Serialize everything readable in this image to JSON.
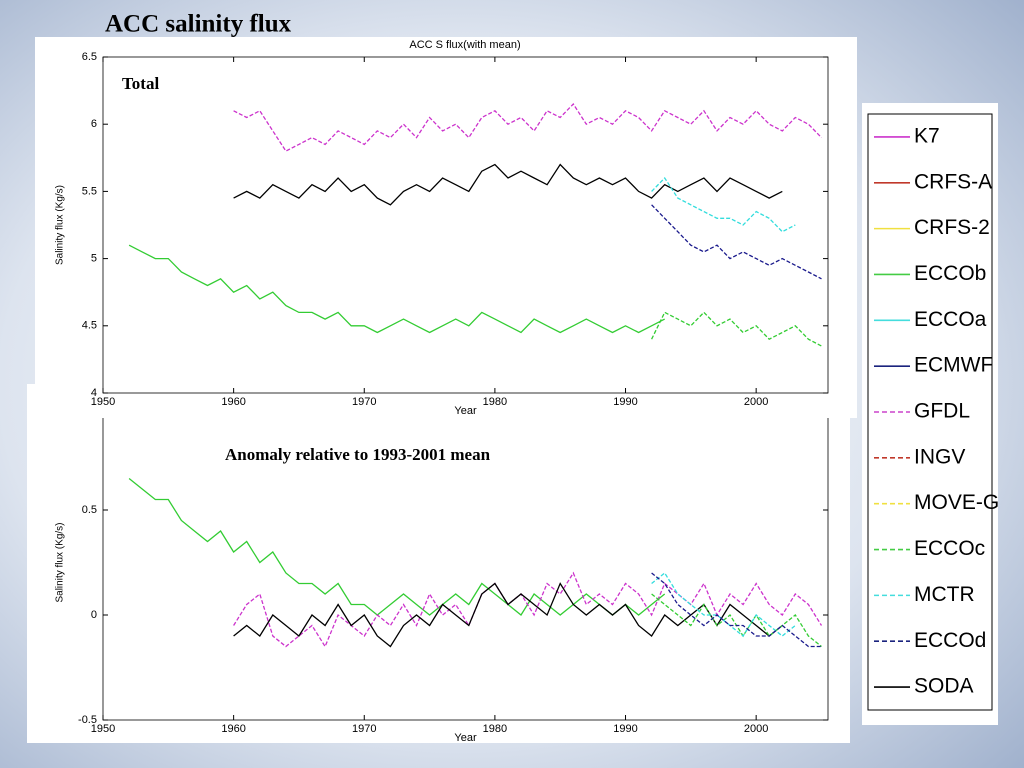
{
  "slide_title": "ACC salinity flux",
  "chart_data": [
    {
      "type": "line",
      "title": "ACC S flux(with mean)",
      "annotation": "Total",
      "xlabel": "Year",
      "ylabel": "Salinity flux (Kg/s)",
      "x": [
        1952,
        1953,
        1954,
        1955,
        1956,
        1957,
        1958,
        1959,
        1960,
        1961,
        1962,
        1963,
        1964,
        1965,
        1966,
        1967,
        1968,
        1969,
        1970,
        1971,
        1972,
        1973,
        1974,
        1975,
        1976,
        1977,
        1978,
        1979,
        1980,
        1981,
        1982,
        1983,
        1984,
        1985,
        1986,
        1987,
        1988,
        1989,
        1990,
        1991,
        1992,
        1993,
        1994,
        1995,
        1996,
        1997,
        1998,
        1999,
        2000,
        2001,
        2002,
        2003,
        2004,
        2005
      ],
      "xlim": [
        1950,
        2005.5
      ],
      "xticks": [
        1950,
        1960,
        1970,
        1980,
        1990,
        2000
      ],
      "ylim": [
        4,
        6.5
      ],
      "yticks": [
        4,
        4.5,
        5,
        5.5,
        6,
        6.5
      ],
      "series": [
        {
          "name": "ECCOb",
          "color": "#33cc33",
          "dashed": false,
          "values": [
            5.1,
            5.05,
            5.0,
            5.0,
            4.9,
            4.85,
            4.8,
            4.85,
            4.75,
            4.8,
            4.7,
            4.75,
            4.65,
            4.6,
            4.6,
            4.55,
            4.6,
            4.5,
            4.5,
            4.45,
            4.5,
            4.55,
            4.5,
            4.45,
            4.5,
            4.55,
            4.5,
            4.6,
            4.55,
            4.5,
            4.45,
            4.55,
            4.5,
            4.45,
            4.5,
            4.55,
            4.5,
            4.45,
            4.5,
            4.45,
            4.5,
            4.55,
            null,
            null,
            null,
            null,
            null,
            null,
            null,
            null,
            null,
            null,
            null,
            null
          ]
        },
        {
          "name": "ECCOc",
          "color": "#33cc33",
          "dashed": true,
          "values": [
            null,
            null,
            null,
            null,
            null,
            null,
            null,
            null,
            null,
            null,
            null,
            null,
            null,
            null,
            null,
            null,
            null,
            null,
            null,
            null,
            null,
            null,
            null,
            null,
            null,
            null,
            null,
            null,
            null,
            null,
            null,
            null,
            null,
            null,
            null,
            null,
            null,
            null,
            null,
            null,
            4.4,
            4.6,
            4.55,
            4.5,
            4.6,
            4.5,
            4.55,
            4.45,
            4.5,
            4.4,
            4.45,
            4.5,
            4.4,
            4.35
          ]
        },
        {
          "name": "K7",
          "color": "#cc33cc",
          "dashed": true,
          "values": [
            null,
            null,
            null,
            null,
            null,
            null,
            null,
            null,
            6.1,
            6.05,
            6.1,
            5.95,
            5.8,
            5.85,
            5.9,
            5.85,
            5.95,
            5.9,
            5.85,
            5.95,
            5.9,
            6.0,
            5.9,
            6.05,
            5.95,
            6.0,
            5.9,
            6.05,
            6.1,
            6.0,
            6.05,
            5.95,
            6.1,
            6.05,
            6.15,
            6.0,
            6.05,
            6.0,
            6.1,
            6.05,
            5.95,
            6.1,
            6.05,
            6.0,
            6.1,
            5.95,
            6.05,
            6.0,
            6.1,
            6.0,
            5.95,
            6.05,
            6.0,
            5.9
          ]
        },
        {
          "name": "SODA",
          "color": "#000000",
          "dashed": false,
          "values": [
            null,
            null,
            null,
            null,
            null,
            null,
            null,
            null,
            5.45,
            5.5,
            5.45,
            5.55,
            5.5,
            5.45,
            5.55,
            5.5,
            5.6,
            5.5,
            5.55,
            5.45,
            5.4,
            5.5,
            5.55,
            5.5,
            5.6,
            5.55,
            5.5,
            5.65,
            5.7,
            5.6,
            5.65,
            5.6,
            5.55,
            5.7,
            5.6,
            5.55,
            5.6,
            5.55,
            5.6,
            5.5,
            5.45,
            5.55,
            5.5,
            5.55,
            5.6,
            5.5,
            5.6,
            5.55,
            5.5,
            5.45,
            5.5,
            null,
            null,
            null
          ]
        },
        {
          "name": "MCTR",
          "color": "#33dddd",
          "dashed": true,
          "values": [
            null,
            null,
            null,
            null,
            null,
            null,
            null,
            null,
            null,
            null,
            null,
            null,
            null,
            null,
            null,
            null,
            null,
            null,
            null,
            null,
            null,
            null,
            null,
            null,
            null,
            null,
            null,
            null,
            null,
            null,
            null,
            null,
            null,
            null,
            null,
            null,
            null,
            null,
            null,
            null,
            5.5,
            5.6,
            5.45,
            5.4,
            5.35,
            5.3,
            5.3,
            5.25,
            5.35,
            5.3,
            5.2,
            5.25,
            null,
            null
          ]
        },
        {
          "name": "ECCOd",
          "color": "#1a1a8c",
          "dashed": true,
          "values": [
            null,
            null,
            null,
            null,
            null,
            null,
            null,
            null,
            null,
            null,
            null,
            null,
            null,
            null,
            null,
            null,
            null,
            null,
            null,
            null,
            null,
            null,
            null,
            null,
            null,
            null,
            null,
            null,
            null,
            null,
            null,
            null,
            null,
            null,
            null,
            null,
            null,
            null,
            null,
            null,
            5.4,
            5.3,
            5.2,
            5.1,
            5.05,
            5.1,
            5.0,
            5.05,
            5.0,
            4.95,
            5.0,
            4.95,
            4.9,
            4.85
          ]
        }
      ]
    },
    {
      "type": "line",
      "annotation": "Anomaly relative to 1993-2001 mean",
      "xlabel": "Year",
      "ylabel": "Salinity flux (Kg/s)",
      "x": [
        1952,
        1953,
        1954,
        1955,
        1956,
        1957,
        1958,
        1959,
        1960,
        1961,
        1962,
        1963,
        1964,
        1965,
        1966,
        1967,
        1968,
        1969,
        1970,
        1971,
        1972,
        1973,
        1974,
        1975,
        1976,
        1977,
        1978,
        1979,
        1980,
        1981,
        1982,
        1983,
        1984,
        1985,
        1986,
        1987,
        1988,
        1989,
        1990,
        1991,
        1992,
        1993,
        1994,
        1995,
        1996,
        1997,
        1998,
        1999,
        2000,
        2001,
        2002,
        2003,
        2004,
        2005
      ],
      "xlim": [
        1950,
        2005.5
      ],
      "xticks": [
        1950,
        1960,
        1970,
        1980,
        1990,
        2000
      ],
      "ylim": [
        -0.5,
        1
      ],
      "yticks": [
        -0.5,
        0,
        0.5
      ],
      "series": [
        {
          "name": "ECCOb",
          "color": "#33cc33",
          "dashed": false,
          "values": [
            0.65,
            0.6,
            0.55,
            0.55,
            0.45,
            0.4,
            0.35,
            0.4,
            0.3,
            0.35,
            0.25,
            0.3,
            0.2,
            0.15,
            0.15,
            0.1,
            0.15,
            0.05,
            0.05,
            0,
            0.05,
            0.1,
            0.05,
            0,
            0.05,
            0.1,
            0.05,
            0.15,
            0.1,
            0.05,
            0,
            0.1,
            0.05,
            0,
            0.05,
            0.1,
            0.05,
            0,
            0.05,
            0,
            0.05,
            0.1,
            null,
            null,
            null,
            null,
            null,
            null,
            null,
            null,
            null,
            null,
            null,
            null
          ]
        },
        {
          "name": "K7",
          "color": "#cc33cc",
          "dashed": true,
          "values": [
            null,
            null,
            null,
            null,
            null,
            null,
            null,
            null,
            -0.05,
            0.05,
            0.1,
            -0.1,
            -0.15,
            -0.1,
            -0.05,
            -0.15,
            0,
            -0.05,
            -0.1,
            0,
            -0.05,
            0.05,
            -0.05,
            0.1,
            0,
            0.05,
            -0.05,
            0.1,
            0.15,
            0.05,
            0.1,
            0,
            0.15,
            0.1,
            0.2,
            0.05,
            0.1,
            0.05,
            0.15,
            0.1,
            0,
            0.15,
            0.1,
            0.05,
            0.15,
            0,
            0.1,
            0.05,
            0.15,
            0.05,
            0,
            0.1,
            0.05,
            -0.05
          ]
        },
        {
          "name": "SODA",
          "color": "#000000",
          "dashed": false,
          "values": [
            null,
            null,
            null,
            null,
            null,
            null,
            null,
            null,
            -0.1,
            -0.05,
            -0.1,
            0,
            -0.05,
            -0.1,
            0,
            -0.05,
            0.05,
            -0.05,
            0,
            -0.1,
            -0.15,
            -0.05,
            0,
            -0.05,
            0.05,
            0,
            -0.05,
            0.1,
            0.15,
            0.05,
            0.1,
            0.05,
            0,
            0.15,
            0.05,
            0,
            0.05,
            0,
            0.05,
            -0.05,
            -0.1,
            0,
            -0.05,
            0,
            0.05,
            -0.05,
            0.05,
            0,
            -0.05,
            -0.1,
            -0.05,
            null,
            null,
            null
          ]
        },
        {
          "name": "ECCOc",
          "color": "#33cc33",
          "dashed": true,
          "values": [
            null,
            null,
            null,
            null,
            null,
            null,
            null,
            null,
            null,
            null,
            null,
            null,
            null,
            null,
            null,
            null,
            null,
            null,
            null,
            null,
            null,
            null,
            null,
            null,
            null,
            null,
            null,
            null,
            null,
            null,
            null,
            null,
            null,
            null,
            null,
            null,
            null,
            null,
            null,
            null,
            0.1,
            0.05,
            0,
            -0.05,
            0.05,
            -0.05,
            0,
            -0.1,
            0,
            -0.1,
            -0.05,
            0,
            -0.1,
            -0.15
          ]
        },
        {
          "name": "MCTR",
          "color": "#33dddd",
          "dashed": true,
          "values": [
            null,
            null,
            null,
            null,
            null,
            null,
            null,
            null,
            null,
            null,
            null,
            null,
            null,
            null,
            null,
            null,
            null,
            null,
            null,
            null,
            null,
            null,
            null,
            null,
            null,
            null,
            null,
            null,
            null,
            null,
            null,
            null,
            null,
            null,
            null,
            null,
            null,
            null,
            null,
            null,
            0.15,
            0.2,
            0.1,
            0.05,
            0,
            0,
            -0.05,
            -0.1,
            0,
            -0.05,
            -0.1,
            -0.05,
            null,
            null
          ]
        },
        {
          "name": "ECCOd",
          "color": "#1a1a8c",
          "dashed": true,
          "values": [
            null,
            null,
            null,
            null,
            null,
            null,
            null,
            null,
            null,
            null,
            null,
            null,
            null,
            null,
            null,
            null,
            null,
            null,
            null,
            null,
            null,
            null,
            null,
            null,
            null,
            null,
            null,
            null,
            null,
            null,
            null,
            null,
            null,
            null,
            null,
            null,
            null,
            null,
            null,
            null,
            0.2,
            0.15,
            0.05,
            0,
            -0.05,
            0,
            -0.05,
            -0.05,
            -0.1,
            -0.1,
            -0.05,
            -0.1,
            -0.15,
            -0.15
          ]
        }
      ]
    }
  ],
  "legend": {
    "entries": [
      {
        "name": "K7",
        "color": "#cc33cc",
        "dashed": false
      },
      {
        "name": "CRFS-A",
        "color": "#c0392b",
        "dashed": false
      },
      {
        "name": "CRFS-2",
        "color": "#f0e040",
        "dashed": false
      },
      {
        "name": "ECCOb",
        "color": "#44cc44",
        "dashed": false
      },
      {
        "name": "ECCOa",
        "color": "#44dddd",
        "dashed": false
      },
      {
        "name": "ECMWF",
        "color": "#1a237e",
        "dashed": false
      },
      {
        "name": "GFDL",
        "color": "#cc44cc",
        "dashed": true
      },
      {
        "name": "INGV",
        "color": "#c0392b",
        "dashed": true
      },
      {
        "name": "MOVE-G",
        "color": "#f0e040",
        "dashed": true
      },
      {
        "name": "ECCOc",
        "color": "#44cc44",
        "dashed": true
      },
      {
        "name": "MCTR",
        "color": "#44dddd",
        "dashed": true
      },
      {
        "name": "ECCOd",
        "color": "#1a237e",
        "dashed": true
      },
      {
        "name": "SODA",
        "color": "#000000",
        "dashed": false
      }
    ]
  }
}
